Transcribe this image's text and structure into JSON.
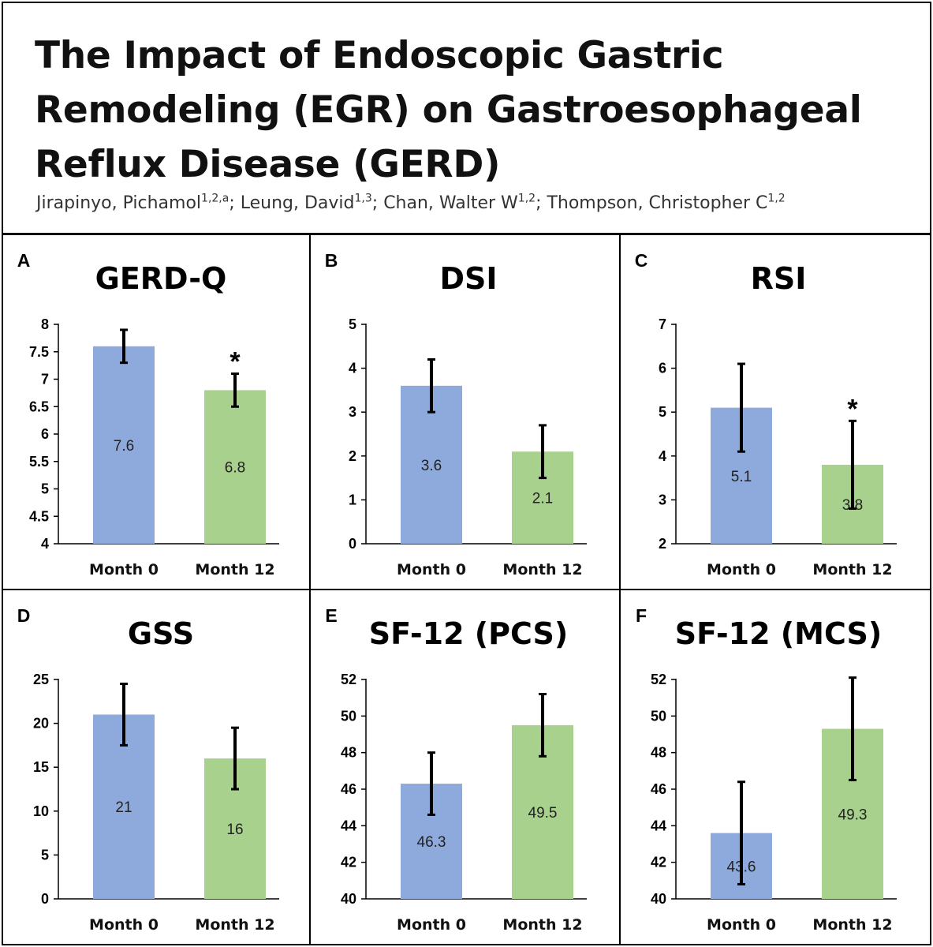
{
  "header": {
    "title": "The Impact of Endoscopic Gastric Remodeling (EGR) on Gastroesophageal Reflux Disease (GERD)",
    "authors": [
      {
        "name": "Jirapinyo, Pichamol",
        "sup": "1,2,a",
        "sep": "; "
      },
      {
        "name": "Leung, David",
        "sup": "1,3",
        "sep": "; "
      },
      {
        "name": "Chan, Walter W",
        "sup": "1,2",
        "sep": "; "
      },
      {
        "name": "Thompson, Christopher C",
        "sup": "1,2",
        "sep": ""
      }
    ]
  },
  "colors": {
    "month0": "#8eaadc",
    "month12": "#a9d18e",
    "error_bar": "#000000"
  },
  "chart_data": [
    {
      "id": "A",
      "type": "bar",
      "title": "GERD-Q",
      "categories": [
        "Month 0",
        "Month 12"
      ],
      "values": [
        7.6,
        6.8
      ],
      "labels": [
        "7.6",
        "6.8"
      ],
      "errors": [
        [
          7.3,
          7.9
        ],
        [
          6.5,
          7.1
        ]
      ],
      "significance": [
        false,
        true
      ],
      "marker": "*",
      "ylim": [
        4,
        8
      ],
      "yticks": [
        "4",
        "4.5",
        "5",
        "5.5",
        "6",
        "6.5",
        "7",
        "7.5",
        "8"
      ]
    },
    {
      "id": "B",
      "type": "bar",
      "title": "DSI",
      "categories": [
        "Month 0",
        "Month 12"
      ],
      "values": [
        3.6,
        2.1
      ],
      "labels": [
        "3.6",
        "2.1"
      ],
      "errors": [
        [
          3.0,
          4.2
        ],
        [
          1.5,
          2.7
        ]
      ],
      "significance": [
        false,
        false
      ],
      "marker": "*",
      "ylim": [
        0,
        5
      ],
      "yticks": [
        "0",
        "1",
        "2",
        "3",
        "4",
        "5"
      ]
    },
    {
      "id": "C",
      "type": "bar",
      "title": "RSI",
      "categories": [
        "Month 0",
        "Month 12"
      ],
      "values": [
        5.1,
        3.8
      ],
      "labels": [
        "5.1",
        "3.8"
      ],
      "errors": [
        [
          4.1,
          6.1
        ],
        [
          2.8,
          4.8
        ]
      ],
      "significance": [
        false,
        true
      ],
      "marker": "*",
      "ylim": [
        2,
        7
      ],
      "yticks": [
        "2",
        "3",
        "4",
        "5",
        "6",
        "7"
      ]
    },
    {
      "id": "D",
      "type": "bar",
      "title": "GSS",
      "categories": [
        "Month 0",
        "Month 12"
      ],
      "values": [
        21,
        16
      ],
      "labels": [
        "21",
        "16"
      ],
      "errors": [
        [
          17.5,
          24.5
        ],
        [
          12.5,
          19.5
        ]
      ],
      "significance": [
        false,
        false
      ],
      "marker": "*",
      "ylim": [
        0,
        25
      ],
      "yticks": [
        "0",
        "5",
        "10",
        "15",
        "20",
        "25"
      ]
    },
    {
      "id": "E",
      "type": "bar",
      "title": "SF-12 (PCS)",
      "categories": [
        "Month 0",
        "Month 12"
      ],
      "values": [
        46.3,
        49.5
      ],
      "labels": [
        "46.3",
        "49.5"
      ],
      "errors": [
        [
          44.6,
          48.0
        ],
        [
          47.8,
          51.2
        ]
      ],
      "significance": [
        false,
        false
      ],
      "marker": "*",
      "ylim": [
        40,
        52
      ],
      "yticks": [
        "40",
        "42",
        "44",
        "46",
        "48",
        "50",
        "52"
      ]
    },
    {
      "id": "F",
      "type": "bar",
      "title": "SF-12 (MCS)",
      "categories": [
        "Month 0",
        "Month 12"
      ],
      "values": [
        43.6,
        49.3
      ],
      "labels": [
        "43.6",
        "49.3"
      ],
      "errors": [
        [
          40.8,
          46.4
        ],
        [
          46.5,
          52.1
        ]
      ],
      "significance": [
        false,
        false
      ],
      "marker": "*",
      "ylim": [
        40,
        52
      ],
      "yticks": [
        "40",
        "42",
        "44",
        "46",
        "48",
        "50",
        "52"
      ]
    }
  ]
}
